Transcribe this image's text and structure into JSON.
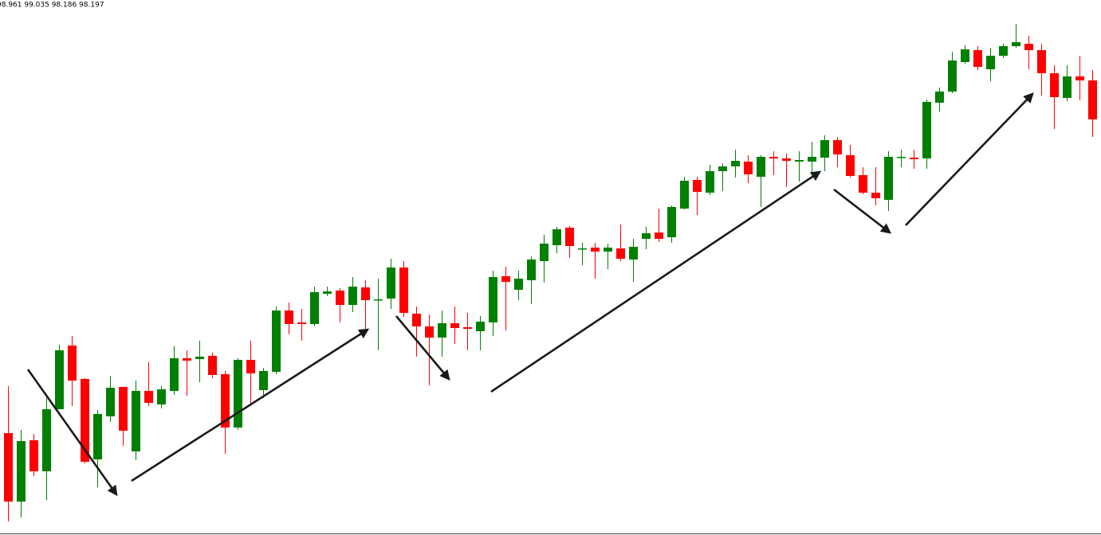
{
  "chart_data": {
    "type": "candlestick",
    "title": "98.961 99.035 98.186 98.197",
    "up_color": "#008000",
    "down_color": "#ff0000",
    "ylim": [
      0,
      672
    ],
    "open": [
      128,
      42,
      119,
      80,
      158,
      238,
      196,
      95,
      149,
      186,
      105,
      181,
      164,
      181,
      222,
      221,
      225,
      202,
      135,
      220,
      182,
      205,
      282,
      267,
      265,
      303,
      307,
      289,
      311,
      295,
      297,
      336,
      278,
      262,
      248,
      266,
      261,
      256,
      267,
      325,
      308,
      320,
      344,
      364,
      386,
      359,
      361,
      356,
      360,
      346,
      372,
      380,
      374,
      410,
      446,
      430,
      457,
      463,
      469,
      450,
      475,
      473,
      469,
      469,
      474,
      496,
      477,
      452,
      430,
      421,
      474,
      474,
      473,
      543,
      557,
      594,
      609,
      585,
      602,
      614,
      617,
      609,
      580,
      549,
      576,
      571
    ],
    "high": [
      187,
      132,
      127,
      172,
      239,
      250,
      197,
      157,
      200,
      186,
      194,
      217,
      187,
      237,
      232,
      244,
      229,
      206,
      222,
      244,
      210,
      287,
      292,
      284,
      312,
      312,
      310,
      324,
      320,
      322,
      347,
      344,
      287,
      277,
      282,
      287,
      279,
      275,
      332,
      337,
      332,
      350,
      377,
      387,
      388,
      367,
      367,
      366,
      390,
      372,
      387,
      410,
      414,
      450,
      450,
      465,
      467,
      484,
      477,
      477,
      482,
      479,
      482,
      494,
      502,
      500,
      490,
      462,
      462,
      482,
      484,
      484,
      547,
      562,
      607,
      615,
      614,
      612,
      617,
      642,
      627,
      617,
      590,
      590,
      602,
      584
    ],
    "low": [
      17,
      22,
      74,
      44,
      158,
      162,
      90,
      60,
      142,
      112,
      94,
      162,
      159,
      176,
      175,
      192,
      197,
      102,
      132,
      162,
      172,
      202,
      252,
      244,
      262,
      300,
      267,
      280,
      259,
      232,
      284,
      274,
      224,
      188,
      224,
      240,
      232,
      232,
      250,
      257,
      295,
      290,
      317,
      354,
      348,
      339,
      322,
      334,
      344,
      318,
      359,
      368,
      367,
      409,
      402,
      427,
      432,
      449,
      442,
      412,
      452,
      437,
      444,
      454,
      457,
      462,
      449,
      428,
      414,
      407,
      462,
      460,
      460,
      532,
      555,
      592,
      584,
      570,
      599,
      612,
      585,
      552,
      510,
      545,
      546,
      500
    ],
    "close": [
      42,
      118,
      80,
      158,
      232,
      194,
      92,
      152,
      185,
      131,
      181,
      166,
      183,
      222,
      219,
      224,
      201,
      135,
      220,
      203,
      206,
      282,
      265,
      265,
      305,
      306,
      289,
      312,
      295,
      296,
      336,
      279,
      262,
      248,
      266,
      260,
      259,
      268,
      324,
      318,
      322,
      346,
      366,
      384,
      363,
      360,
      356,
      361,
      347,
      362,
      379,
      372,
      412,
      445,
      431,
      457,
      463,
      470,
      453,
      475,
      473,
      470,
      471,
      475,
      496,
      478,
      451,
      430,
      423,
      475,
      475,
      472,
      544,
      557,
      596,
      610,
      588,
      602,
      614,
      619,
      609,
      580,
      550,
      576,
      571,
      522
    ]
  }
}
